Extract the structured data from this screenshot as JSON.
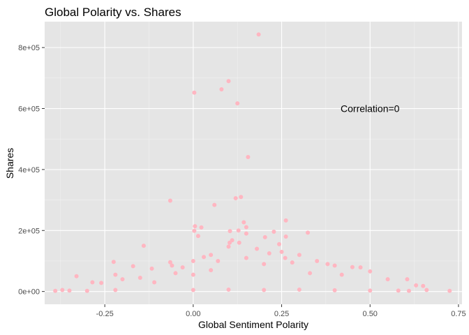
{
  "chart_data": {
    "type": "scatter",
    "title": "Global Polarity vs. Shares",
    "xlabel": "Global Sentiment Polarity",
    "ylabel": "Shares",
    "xlim": [
      -0.42,
      0.76
    ],
    "ylim": [
      -42000,
      885000
    ],
    "x_ticks": [
      {
        "value": -0.25,
        "label": "-0.25"
      },
      {
        "value": 0.0,
        "label": "0.00"
      },
      {
        "value": 0.25,
        "label": "0.25"
      },
      {
        "value": 0.5,
        "label": "0.50"
      },
      {
        "value": 0.75,
        "label": "0.75"
      }
    ],
    "y_ticks": [
      {
        "value": 0,
        "label": "0e+00"
      },
      {
        "value": 200000,
        "label": "2e+05"
      },
      {
        "value": 400000,
        "label": "4e+05"
      },
      {
        "value": 600000,
        "label": "6e+05"
      },
      {
        "value": 800000,
        "label": "8e+05"
      }
    ],
    "point_color": "#ffb6c1",
    "panel_background": "#e5e5e5",
    "grid": true,
    "legend": "none",
    "annotation": {
      "text": "Correlation=0",
      "x": 0.5,
      "y": 600000
    },
    "series": [
      {
        "points": [
          [
            0.185,
            843000
          ],
          [
            0.1,
            690000
          ],
          [
            0.08,
            663000
          ],
          [
            0.003,
            652000
          ],
          [
            0.125,
            617000
          ],
          [
            0.155,
            441000
          ],
          [
            0.135,
            310000
          ],
          [
            0.12,
            306000
          ],
          [
            -0.065,
            298000
          ],
          [
            0.06,
            284000
          ],
          [
            0.262,
            233000
          ],
          [
            0.143,
            227000
          ],
          [
            0.005,
            214000
          ],
          [
            0.003,
            199000
          ],
          [
            0.104,
            198000
          ],
          [
            0.128,
            200000
          ],
          [
            0.023,
            210000
          ],
          [
            0.15,
            211000
          ],
          [
            0.228,
            196000
          ],
          [
            0.324,
            193000
          ],
          [
            0.262,
            180000
          ],
          [
            0.203,
            178000
          ],
          [
            0.103,
            160000
          ],
          [
            0.014,
            182000
          ],
          [
            0.15,
            190000
          ],
          [
            -0.14,
            150000
          ],
          [
            0.11,
            168000
          ],
          [
            0.243,
            155000
          ],
          [
            0.3,
            120000
          ],
          [
            0.13,
            160000
          ],
          [
            -0.225,
            97000
          ],
          [
            -0.17,
            83000
          ],
          [
            -0.117,
            75000
          ],
          [
            -0.065,
            96000
          ],
          [
            -0.06,
            85000
          ],
          [
            -0.03,
            79000
          ],
          [
            0.0,
            100000
          ],
          [
            0.03,
            113000
          ],
          [
            0.05,
            120000
          ],
          [
            0.1,
            147000
          ],
          [
            0.15,
            110000
          ],
          [
            0.25,
            130000
          ],
          [
            0.35,
            100000
          ],
          [
            0.4,
            85000
          ],
          [
            0.45,
            80000
          ],
          [
            0.5,
            66000
          ],
          [
            0.473,
            79000
          ],
          [
            0.38,
            90000
          ],
          [
            -0.33,
            50000
          ],
          [
            -0.285,
            30000
          ],
          [
            -0.26,
            28000
          ],
          [
            -0.2,
            40000
          ],
          [
            -0.22,
            55000
          ],
          [
            -0.15,
            45000
          ],
          [
            -0.11,
            30000
          ],
          [
            -0.05,
            60000
          ],
          [
            0.0,
            55000
          ],
          [
            0.05,
            70000
          ],
          [
            0.2,
            90000
          ],
          [
            0.28,
            95000
          ],
          [
            0.33,
            60000
          ],
          [
            0.42,
            55000
          ],
          [
            0.55,
            40000
          ],
          [
            0.605,
            40000
          ],
          [
            0.63,
            20000
          ],
          [
            0.65,
            18000
          ],
          [
            0.66,
            5000
          ],
          [
            0.725,
            2000
          ],
          [
            -0.37,
            5000
          ],
          [
            -0.39,
            2000
          ],
          [
            -0.35,
            3000
          ],
          [
            -0.3,
            2000
          ],
          [
            -0.22,
            5000
          ],
          [
            0.0,
            5000
          ],
          [
            0.1,
            6000
          ],
          [
            0.2,
            5000
          ],
          [
            0.3,
            6000
          ],
          [
            0.4,
            4000
          ],
          [
            0.5,
            3000
          ],
          [
            0.58,
            3000
          ],
          [
            0.61,
            2000
          ],
          [
            0.07,
            100000
          ],
          [
            0.18,
            140000
          ],
          [
            0.215,
            125000
          ],
          [
            0.26,
            110000
          ]
        ]
      }
    ]
  }
}
